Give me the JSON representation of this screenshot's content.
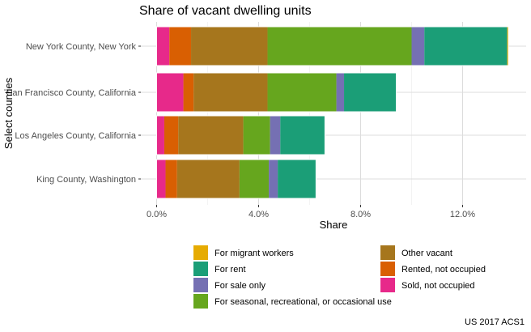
{
  "chart_data": {
    "type": "bar",
    "orientation": "horizontal",
    "stacked": true,
    "title": "Share of vacant dwelling units",
    "xlabel": "Share",
    "ylabel": "Select counties",
    "caption": "US 2017 ACS1",
    "xlim": [
      0,
      0.14
    ],
    "x_ticks": [
      0,
      0.04,
      0.08,
      0.12
    ],
    "x_tick_labels": [
      "0.0%",
      "4.0%",
      "8.0%",
      "12.0%"
    ],
    "grid": true,
    "legend_position": "bottom",
    "categories": [
      "New York County, New York",
      "San Francisco County, California",
      "Los Angeles County, California",
      "King County, Washington"
    ],
    "series": [
      {
        "name": "Sold, not occupied",
        "color": "#e7298a",
        "values": [
          0.005,
          0.0105,
          0.003,
          0.0035
        ]
      },
      {
        "name": "Rented, not occupied",
        "color": "#d95f02",
        "values": [
          0.0085,
          0.004,
          0.0055,
          0.0045
        ]
      },
      {
        "name": "Other vacant",
        "color": "#a6761d",
        "values": [
          0.03,
          0.029,
          0.0255,
          0.0245
        ]
      },
      {
        "name": "For seasonal, recreational, or occasional use",
        "color": "#66a61e",
        "values": [
          0.0565,
          0.027,
          0.0105,
          0.0115
        ]
      },
      {
        "name": "For sale only",
        "color": "#7570b3",
        "values": [
          0.005,
          0.003,
          0.004,
          0.0035
        ]
      },
      {
        "name": "For rent",
        "color": "#1b9e77",
        "values": [
          0.0325,
          0.0205,
          0.0175,
          0.015
        ]
      },
      {
        "name": "For migrant workers",
        "color": "#e6ab02",
        "values": [
          0.0005,
          0.0,
          0.0,
          0.0
        ]
      }
    ],
    "legend_order": [
      "For migrant workers",
      "Other vacant",
      "For rent",
      "Rented, not occupied",
      "For sale only",
      "Sold, not occupied",
      "For seasonal, recreational, or occasional use"
    ]
  }
}
